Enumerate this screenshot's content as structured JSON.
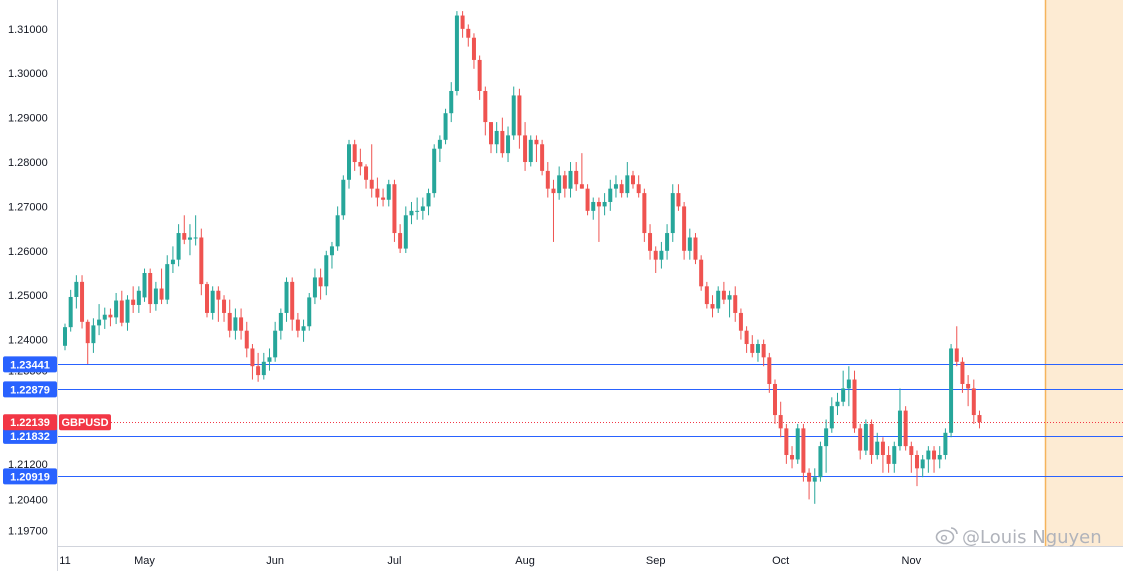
{
  "chart_data": {
    "type": "candlestick",
    "symbol": "GBPUSD",
    "last_price": "1.22139",
    "y_ticks": [
      "1.31000",
      "1.30000",
      "1.29000",
      "1.28000",
      "1.27000",
      "1.26000",
      "1.25000",
      "1.24000",
      "1.23300",
      "1.21200",
      "1.20400",
      "1.19700"
    ],
    "ylim": [
      1.1935,
      1.3165
    ],
    "x_labels": [
      {
        "label": "11",
        "index": 0
      },
      {
        "label": "May",
        "index": 14
      },
      {
        "label": "Jun",
        "index": 37
      },
      {
        "label": "Jul",
        "index": 58
      },
      {
        "label": "Aug",
        "index": 81
      },
      {
        "label": "Sep",
        "index": 104
      },
      {
        "label": "Oct",
        "index": 126
      },
      {
        "label": "Nov",
        "index": 149
      }
    ],
    "horizontal_levels": [
      {
        "label": "1.23441",
        "value": 1.23441
      },
      {
        "label": "1.22879",
        "value": 1.22879
      },
      {
        "label": "1.21832",
        "value": 1.21832
      },
      {
        "label": "1.20919",
        "value": 1.20919
      }
    ],
    "candles": [
      [
        1.2386,
        1.2436,
        1.2376,
        1.2428
      ],
      [
        1.2428,
        1.2512,
        1.2418,
        1.2496
      ],
      [
        1.2496,
        1.2545,
        1.247,
        1.253
      ],
      [
        1.253,
        1.2545,
        1.2425,
        1.244
      ],
      [
        1.244,
        1.2445,
        1.2345,
        1.2392
      ],
      [
        1.2392,
        1.2448,
        1.237,
        1.2432
      ],
      [
        1.2432,
        1.248,
        1.241,
        1.2445
      ],
      [
        1.2445,
        1.2472,
        1.2424,
        1.2456
      ],
      [
        1.2456,
        1.247,
        1.243,
        1.245
      ],
      [
        1.245,
        1.2505,
        1.2435,
        1.2488
      ],
      [
        1.2488,
        1.251,
        1.243,
        1.2438
      ],
      [
        1.2438,
        1.25,
        1.242,
        1.249
      ],
      [
        1.249,
        1.252,
        1.246,
        1.2478
      ],
      [
        1.2478,
        1.252,
        1.246,
        1.251
      ],
      [
        1.2495,
        1.256,
        1.2485,
        1.255
      ],
      [
        1.255,
        1.256,
        1.246,
        1.248
      ],
      [
        1.248,
        1.253,
        1.2465,
        1.2515
      ],
      [
        1.2515,
        1.256,
        1.248,
        1.249
      ],
      [
        1.249,
        1.259,
        1.248,
        1.257
      ],
      [
        1.257,
        1.261,
        1.255,
        1.258
      ],
      [
        1.258,
        1.266,
        1.2565,
        1.264
      ],
      [
        1.264,
        1.268,
        1.2615,
        1.2625
      ],
      [
        1.2625,
        1.266,
        1.259,
        1.263
      ],
      [
        1.263,
        1.268,
        1.2612,
        1.263
      ],
      [
        1.263,
        1.265,
        1.25,
        1.2525
      ],
      [
        1.2525,
        1.253,
        1.245,
        1.246
      ],
      [
        1.246,
        1.252,
        1.2445,
        1.251
      ],
      [
        1.251,
        1.252,
        1.244,
        1.249
      ],
      [
        1.249,
        1.25,
        1.244,
        1.246
      ],
      [
        1.246,
        1.249,
        1.2405,
        1.242
      ],
      [
        1.242,
        1.247,
        1.24,
        1.245
      ],
      [
        1.245,
        1.247,
        1.24,
        1.242
      ],
      [
        1.242,
        1.244,
        1.236,
        1.238
      ],
      [
        1.238,
        1.239,
        1.231,
        1.234
      ],
      [
        1.234,
        1.237,
        1.2305,
        1.232
      ],
      [
        1.232,
        1.237,
        1.231,
        1.235
      ],
      [
        1.235,
        1.238,
        1.233,
        1.236
      ],
      [
        1.236,
        1.244,
        1.235,
        1.242
      ],
      [
        1.242,
        1.247,
        1.24,
        1.246
      ],
      [
        1.246,
        1.254,
        1.244,
        1.253
      ],
      [
        1.253,
        1.254,
        1.242,
        1.2445
      ],
      [
        1.2445,
        1.246,
        1.2405,
        1.242
      ],
      [
        1.242,
        1.2445,
        1.2395,
        1.243
      ],
      [
        1.243,
        1.2505,
        1.242,
        1.2495
      ],
      [
        1.2495,
        1.256,
        1.248,
        1.254
      ],
      [
        1.254,
        1.256,
        1.249,
        1.252
      ],
      [
        1.252,
        1.26,
        1.25,
        1.259
      ],
      [
        1.259,
        1.262,
        1.256,
        1.261
      ],
      [
        1.261,
        1.27,
        1.26,
        1.268
      ],
      [
        1.268,
        1.277,
        1.267,
        1.276
      ],
      [
        1.276,
        1.285,
        1.274,
        1.284
      ],
      [
        1.284,
        1.285,
        1.278,
        1.28
      ],
      [
        1.28,
        1.283,
        1.277,
        1.279
      ],
      [
        1.279,
        1.2795,
        1.274,
        1.276
      ],
      [
        1.276,
        1.284,
        1.272,
        1.274
      ],
      [
        1.274,
        1.2765,
        1.27,
        1.272
      ],
      [
        1.272,
        1.274,
        1.27,
        1.2715
      ],
      [
        1.2715,
        1.276,
        1.27,
        1.275
      ],
      [
        1.275,
        1.276,
        1.262,
        1.264
      ],
      [
        1.264,
        1.266,
        1.2595,
        1.2605
      ],
      [
        1.2605,
        1.27,
        1.2595,
        1.268
      ],
      [
        1.268,
        1.271,
        1.266,
        1.269
      ],
      [
        1.269,
        1.272,
        1.267,
        1.269
      ],
      [
        1.269,
        1.272,
        1.267,
        1.27
      ],
      [
        1.27,
        1.274,
        1.268,
        1.273
      ],
      [
        1.273,
        1.284,
        1.272,
        1.283
      ],
      [
        1.283,
        1.286,
        1.28,
        1.285
      ],
      [
        1.285,
        1.292,
        1.284,
        1.291
      ],
      [
        1.291,
        1.298,
        1.289,
        1.296
      ],
      [
        1.296,
        1.314,
        1.295,
        1.313
      ],
      [
        1.313,
        1.314,
        1.308,
        1.31
      ],
      [
        1.31,
        1.311,
        1.306,
        1.308
      ],
      [
        1.308,
        1.309,
        1.301,
        1.303
      ],
      [
        1.303,
        1.304,
        1.294,
        1.296
      ],
      [
        1.296,
        1.297,
        1.286,
        1.289
      ],
      [
        1.289,
        1.289,
        1.282,
        1.284
      ],
      [
        1.284,
        1.289,
        1.282,
        1.287
      ],
      [
        1.287,
        1.29,
        1.281,
        1.282
      ],
      [
        1.282,
        1.288,
        1.28,
        1.286
      ],
      [
        1.286,
        1.297,
        1.285,
        1.295
      ],
      [
        1.295,
        1.2965,
        1.283,
        1.286
      ],
      [
        1.286,
        1.289,
        1.278,
        1.28
      ],
      [
        1.28,
        1.286,
        1.279,
        1.285
      ],
      [
        1.285,
        1.286,
        1.28,
        1.284
      ],
      [
        1.284,
        1.285,
        1.277,
        1.278
      ],
      [
        1.278,
        1.28,
        1.272,
        1.274
      ],
      [
        1.274,
        1.276,
        1.262,
        1.273
      ],
      [
        1.273,
        1.279,
        1.2715,
        1.277
      ],
      [
        1.277,
        1.278,
        1.272,
        1.274
      ],
      [
        1.274,
        1.28,
        1.272,
        1.278
      ],
      [
        1.278,
        1.28,
        1.2735,
        1.275
      ],
      [
        1.275,
        1.282,
        1.274,
        1.274
      ],
      [
        1.274,
        1.275,
        1.268,
        1.269
      ],
      [
        1.269,
        1.272,
        1.267,
        1.271
      ],
      [
        1.271,
        1.272,
        1.262,
        1.27
      ],
      [
        1.27,
        1.273,
        1.268,
        1.271
      ],
      [
        1.271,
        1.276,
        1.269,
        1.274
      ],
      [
        1.274,
        1.277,
        1.272,
        1.275
      ],
      [
        1.275,
        1.276,
        1.272,
        1.273
      ],
      [
        1.273,
        1.28,
        1.272,
        1.277
      ],
      [
        1.277,
        1.278,
        1.274,
        1.275
      ],
      [
        1.275,
        1.277,
        1.272,
        1.273
      ],
      [
        1.273,
        1.274,
        1.262,
        1.264
      ],
      [
        1.264,
        1.266,
        1.258,
        1.26
      ],
      [
        1.26,
        1.261,
        1.255,
        1.258
      ],
      [
        1.258,
        1.262,
        1.256,
        1.26
      ],
      [
        1.26,
        1.266,
        1.258,
        1.264
      ],
      [
        1.264,
        1.275,
        1.262,
        1.273
      ],
      [
        1.273,
        1.275,
        1.269,
        1.27
      ],
      [
        1.27,
        1.271,
        1.258,
        1.26
      ],
      [
        1.26,
        1.265,
        1.258,
        1.263
      ],
      [
        1.263,
        1.264,
        1.257,
        1.258
      ],
      [
        1.258,
        1.259,
        1.251,
        1.252
      ],
      [
        1.252,
        1.253,
        1.247,
        1.248
      ],
      [
        1.248,
        1.25,
        1.245,
        1.247
      ],
      [
        1.247,
        1.252,
        1.246,
        1.251
      ],
      [
        1.251,
        1.253,
        1.248,
        1.249
      ],
      [
        1.249,
        1.251,
        1.245,
        1.25
      ],
      [
        1.25,
        1.252,
        1.244,
        1.246
      ],
      [
        1.246,
        1.247,
        1.24,
        1.242
      ],
      [
        1.242,
        1.243,
        1.237,
        1.239
      ],
      [
        1.239,
        1.241,
        1.236,
        1.237
      ],
      [
        1.237,
        1.24,
        1.235,
        1.239
      ],
      [
        1.239,
        1.24,
        1.234,
        1.236
      ],
      [
        1.236,
        1.237,
        1.228,
        1.23
      ],
      [
        1.23,
        1.231,
        1.221,
        1.223
      ],
      [
        1.223,
        1.226,
        1.218,
        1.22
      ],
      [
        1.22,
        1.221,
        1.212,
        1.214
      ],
      [
        1.214,
        1.216,
        1.211,
        1.213
      ],
      [
        1.213,
        1.221,
        1.212,
        1.22
      ],
      [
        1.22,
        1.221,
        1.208,
        1.21
      ],
      [
        1.21,
        1.211,
        1.204,
        1.208
      ],
      [
        1.208,
        1.211,
        1.203,
        1.209
      ],
      [
        1.209,
        1.217,
        1.208,
        1.216
      ],
      [
        1.216,
        1.222,
        1.21,
        1.22
      ],
      [
        1.22,
        1.227,
        1.219,
        1.225
      ],
      [
        1.225,
        1.228,
        1.223,
        1.226
      ],
      [
        1.226,
        1.233,
        1.225,
        1.229
      ],
      [
        1.229,
        1.234,
        1.225,
        1.231
      ],
      [
        1.231,
        1.233,
        1.219,
        1.22
      ],
      [
        1.22,
        1.221,
        1.213,
        1.215
      ],
      [
        1.215,
        1.222,
        1.214,
        1.221
      ],
      [
        1.221,
        1.222,
        1.212,
        1.214
      ],
      [
        1.214,
        1.219,
        1.213,
        1.217
      ],
      [
        1.217,
        1.218,
        1.21,
        1.214
      ],
      [
        1.214,
        1.216,
        1.21,
        1.212
      ],
      [
        1.212,
        1.217,
        1.21,
        1.216
      ],
      [
        1.216,
        1.229,
        1.215,
        1.224
      ],
      [
        1.224,
        1.225,
        1.215,
        1.216
      ],
      [
        1.216,
        1.217,
        1.21,
        1.214
      ],
      [
        1.214,
        1.215,
        1.207,
        1.211
      ],
      [
        1.211,
        1.214,
        1.209,
        1.213
      ],
      [
        1.213,
        1.216,
        1.21,
        1.215
      ],
      [
        1.215,
        1.216,
        1.21,
        1.213
      ],
      [
        1.213,
        1.216,
        1.211,
        1.214
      ],
      [
        1.214,
        1.22,
        1.213,
        1.219
      ],
      [
        1.219,
        1.239,
        1.218,
        1.238
      ],
      [
        1.238,
        1.243,
        1.234,
        1.235
      ],
      [
        1.235,
        1.236,
        1.228,
        1.23
      ],
      [
        1.23,
        1.232,
        1.225,
        1.229
      ],
      [
        1.229,
        1.231,
        1.221,
        1.223
      ],
      [
        1.223,
        1.224,
        1.22,
        1.2214
      ]
    ],
    "colors": {
      "up": "#26a69a",
      "down": "#ef5350",
      "level_line": "#2962ff",
      "level_tag": "#2962ff",
      "price_tag": "#f23645",
      "future_zone": "#fdebd3",
      "future_zone_border": "#f5b45c",
      "axis_text": "#131722",
      "axis_line": "#d1d4dc"
    }
  },
  "watermark": {
    "icon": "weibo-icon",
    "text": "@Louis Nguyen"
  }
}
